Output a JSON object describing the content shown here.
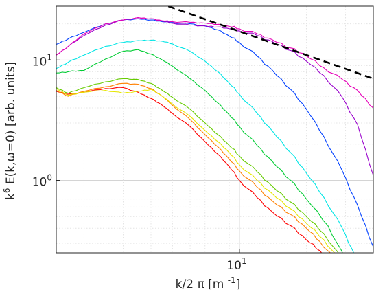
{
  "chart_data": {
    "type": "line",
    "title": "",
    "xscale": "log",
    "yscale": "log",
    "xlim": [
      1.5,
      40
    ],
    "ylim": [
      0.25,
      28
    ],
    "grid": true,
    "minor_grid": true,
    "legend": "none",
    "xlabel_parts": {
      "pre": "k/2 ",
      "greek": "π",
      "mid": " [m ",
      "sup": "-1",
      "post": "]"
    },
    "ylabel_parts": {
      "pre": "k",
      "sup": "6",
      "mid1": " E(k,",
      "greek": "ω",
      "post": "=0) [arb. units]"
    },
    "xticks": [
      {
        "value": 10,
        "base": "10",
        "exp": "1"
      }
    ],
    "yticks": [
      {
        "value": 1,
        "base": "10",
        "exp": "0"
      },
      {
        "value": 10,
        "base": "10",
        "exp": "1"
      }
    ],
    "reference_line": {
      "style": "dashed",
      "color": "#000000",
      "x": [
        4.3,
        40
      ],
      "y": [
        30,
        7
      ]
    },
    "series": [
      {
        "color": "#ff0000",
        "x": [
          1.5,
          1.7,
          2.0,
          2.5,
          3.0,
          3.5,
          4.0,
          4.5,
          5.0,
          6.0,
          7.0,
          8.0,
          9.0,
          10.0,
          12.0,
          14.0,
          17.0,
          20.0,
          23.0,
          26.0
        ],
        "y": [
          5.5,
          5.2,
          5.4,
          5.8,
          5.9,
          5.4,
          4.8,
          4.2,
          3.6,
          2.8,
          2.1,
          1.65,
          1.3,
          1.0,
          0.72,
          0.55,
          0.42,
          0.32,
          0.26,
          0.22
        ]
      },
      {
        "color": "#ff8000",
        "x": [
          1.5,
          1.7,
          2.0,
          2.5,
          3.0,
          3.5,
          4.0,
          4.5,
          5.0,
          6.0,
          7.0,
          8.0,
          9.0,
          10.0,
          12.0,
          14.0,
          17.0,
          20.0,
          23.0,
          27.0
        ],
        "y": [
          5.6,
          5.0,
          5.5,
          6.0,
          6.4,
          6.3,
          5.8,
          5.0,
          4.2,
          3.2,
          2.4,
          1.9,
          1.5,
          1.2,
          0.88,
          0.68,
          0.52,
          0.4,
          0.31,
          0.22
        ]
      },
      {
        "color": "#e6e600",
        "x": [
          1.5,
          1.7,
          2.0,
          2.5,
          3.0,
          3.5,
          4.0,
          4.5,
          5.0,
          6.0,
          7.0,
          8.0,
          9.0,
          10.0,
          12.0,
          14.0,
          17.0,
          20.0,
          24.0,
          28.0
        ],
        "y": [
          5.8,
          5.1,
          5.4,
          5.6,
          5.3,
          5.5,
          5.7,
          5.0,
          4.3,
          3.4,
          2.6,
          2.1,
          1.7,
          1.35,
          1.0,
          0.78,
          0.58,
          0.44,
          0.32,
          0.22
        ]
      },
      {
        "color": "#66cc00",
        "x": [
          1.5,
          1.7,
          2.0,
          2.5,
          3.0,
          3.5,
          4.0,
          4.5,
          5.0,
          6.0,
          7.0,
          8.0,
          9.0,
          10.0,
          12.0,
          14.0,
          17.0,
          20.0,
          24.0,
          29.0
        ],
        "y": [
          5.9,
          5.3,
          5.9,
          6.6,
          7.0,
          6.9,
          6.4,
          5.6,
          4.9,
          3.9,
          3.0,
          2.4,
          1.95,
          1.6,
          1.18,
          0.9,
          0.66,
          0.5,
          0.36,
          0.22
        ]
      },
      {
        "color": "#00cc33",
        "x": [
          1.5,
          1.7,
          2.0,
          2.5,
          3.0,
          3.5,
          4.0,
          4.5,
          5.0,
          6.0,
          7.0,
          8.0,
          9.0,
          10.0,
          12.0,
          14.0,
          17.0,
          20.0,
          25.0,
          30.0
        ],
        "y": [
          7.8,
          8.0,
          8.2,
          10.2,
          11.8,
          12.2,
          11.2,
          10.0,
          8.9,
          7.0,
          5.6,
          4.4,
          3.5,
          2.8,
          1.95,
          1.45,
          1.0,
          0.7,
          0.42,
          0.22
        ]
      },
      {
        "color": "#00e5e5",
        "x": [
          1.5,
          1.7,
          2.0,
          2.5,
          3.0,
          3.5,
          4.0,
          4.5,
          5.0,
          6.0,
          7.0,
          8.0,
          9.0,
          10.0,
          12.0,
          14.0,
          17.0,
          20.0,
          24.0,
          29.0,
          33.0
        ],
        "y": [
          8.5,
          9.6,
          11.0,
          13.0,
          14.0,
          14.5,
          14.6,
          14.3,
          13.6,
          11.8,
          9.8,
          8.0,
          6.4,
          5.2,
          3.6,
          2.6,
          1.7,
          1.15,
          0.72,
          0.4,
          0.24
        ]
      },
      {
        "color": "#0040ff",
        "x": [
          1.5,
          1.7,
          2.0,
          2.5,
          3.0,
          3.5,
          4.0,
          4.5,
          5.0,
          6.0,
          7.0,
          8.0,
          9.0,
          10.0,
          12.0,
          14.0,
          17.0,
          20.0,
          24.0,
          29.0,
          34.0,
          40.0
        ],
        "y": [
          13.5,
          15.0,
          17.0,
          20.0,
          21.5,
          22.0,
          21.5,
          20.8,
          20.5,
          20.0,
          19.2,
          17.8,
          15.8,
          14.0,
          10.8,
          8.3,
          5.7,
          3.9,
          2.3,
          1.2,
          0.62,
          0.28
        ]
      },
      {
        "color": "#9900cc",
        "x": [
          1.5,
          1.7,
          2.0,
          2.5,
          3.0,
          3.5,
          4.0,
          4.5,
          5.0,
          6.0,
          7.0,
          8.0,
          9.0,
          10.0,
          12.0,
          14.0,
          17.0,
          20.0,
          24.0,
          29.0,
          34.0,
          40.0
        ],
        "y": [
          11.0,
          13.0,
          16.0,
          19.5,
          21.5,
          22.5,
          22.0,
          21.0,
          20.2,
          19.5,
          19.2,
          18.8,
          18.2,
          17.5,
          16.0,
          14.3,
          12.0,
          9.8,
          7.4,
          4.9,
          2.9,
          1.1
        ]
      },
      {
        "color": "#e600b8",
        "x": [
          1.5,
          1.7,
          2.0,
          2.5,
          3.0,
          3.5,
          4.0,
          4.5,
          5.0,
          6.0,
          7.0,
          8.0,
          9.0,
          10.0,
          12.0,
          14.0,
          17.0,
          20.0,
          24.0,
          29.0,
          34.0,
          40.0
        ],
        "y": [
          11.0,
          13.0,
          16.5,
          20.0,
          21.5,
          22.5,
          22.0,
          21.2,
          20.8,
          20.6,
          20.3,
          19.8,
          19.0,
          18.2,
          16.5,
          14.8,
          12.6,
          10.8,
          8.6,
          6.9,
          5.6,
          4.0
        ]
      }
    ]
  }
}
